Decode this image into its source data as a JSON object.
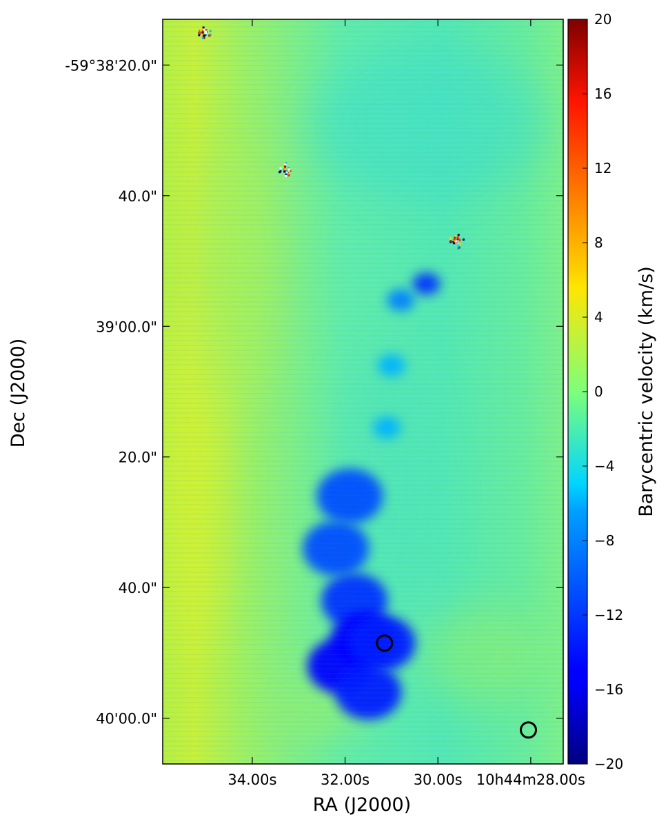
{
  "chart_data": {
    "type": "heatmap",
    "title": "",
    "xlabel": "RA (J2000)",
    "ylabel": "Dec (J2000)",
    "x_ticks": [
      "34.00s",
      "32.00s",
      "30.00s",
      "10h44m28.00s"
    ],
    "x_tick_values": [
      34,
      32,
      30,
      28
    ],
    "xlim": [
      35.93,
      27.3
    ],
    "y_ticks": [
      "-59°38'20.0\"",
      "40.0\"",
      "39'00.0\"",
      "20.0\"",
      "40.0\"",
      "40'00.0\""
    ],
    "y_tick_values": [
      2300,
      2320,
      2340,
      2360,
      2380,
      2400
    ],
    "ylim": [
      2407.0,
      2293.0
    ],
    "colorbar": {
      "label": "Barycentric velocity (km/s)",
      "ticks": [
        "20",
        "16",
        "12",
        "8",
        "4",
        "0",
        "−4",
        "−8",
        "−12",
        "−16",
        "−20"
      ],
      "tick_values": [
        20,
        16,
        12,
        8,
        4,
        0,
        -4,
        -8,
        -12,
        -16,
        -20
      ],
      "range": [
        -20,
        20
      ],
      "colormap": "jet"
    },
    "background_velocity": -2,
    "features": [
      {
        "type": "blueshifted-clump",
        "ra_s": 30.25,
        "dec_s": 2333.5,
        "velocity": -13
      },
      {
        "type": "blueshifted-clump",
        "ra_s": 30.8,
        "dec_s": 2336.0,
        "velocity": -10
      },
      {
        "type": "blueshifted-clump",
        "ra_s": 31.0,
        "dec_s": 2346.0,
        "velocity": -8
      },
      {
        "type": "blueshifted-clump",
        "ra_s": 31.1,
        "dec_s": 2355.5,
        "velocity": -8
      },
      {
        "type": "blueshifted-jet",
        "ra_s": 31.9,
        "dec_s": 2366.0,
        "velocity": -12
      },
      {
        "type": "blueshifted-jet",
        "ra_s": 32.2,
        "dec_s": 2374.0,
        "velocity": -12
      },
      {
        "type": "blueshifted-jet",
        "ra_s": 31.8,
        "dec_s": 2382.0,
        "velocity": -13
      },
      {
        "type": "blueshifted-jet",
        "ra_s": 31.6,
        "dec_s": 2388.0,
        "velocity": -15
      },
      {
        "type": "blueshifted-jet",
        "ra_s": 32.1,
        "dec_s": 2392.0,
        "velocity": -15
      },
      {
        "type": "blueshifted-jet",
        "ra_s": 31.2,
        "dec_s": 2388.5,
        "velocity": -14
      },
      {
        "type": "blueshifted-jet",
        "ra_s": 31.5,
        "dec_s": 2396.0,
        "velocity": -14
      },
      {
        "type": "star-residual",
        "ra_s": 35.05,
        "dec_s": 2295.0
      },
      {
        "type": "star-residual",
        "ra_s": 33.3,
        "dec_s": 2316.0
      },
      {
        "type": "star-residual",
        "ra_s": 29.6,
        "dec_s": 2327.0
      }
    ],
    "markers": [
      {
        "type": "circle",
        "ra_s": 31.15,
        "dec_s": 2388.5
      },
      {
        "type": "circle",
        "ra_s": 28.05,
        "dec_s": 2401.8
      }
    ]
  }
}
